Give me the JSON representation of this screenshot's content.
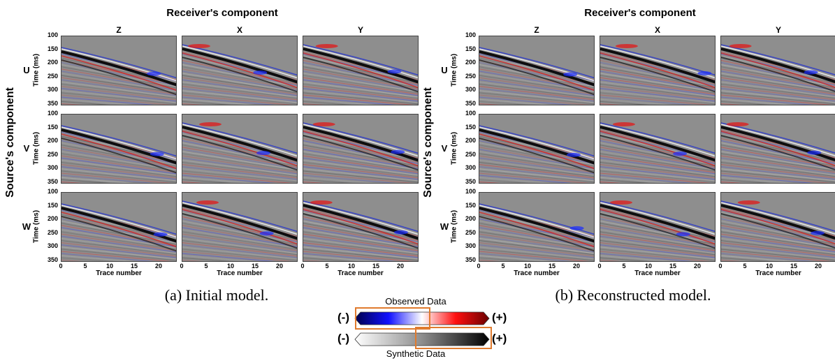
{
  "figures": [
    {
      "receiver_title": "Receiver's component",
      "source_title": "Source's component",
      "columns": [
        "Z",
        "X",
        "Y"
      ],
      "rows": [
        "U",
        "V",
        "W"
      ],
      "ylabel": "Time (ms)",
      "xlabel": "Trace number",
      "yticks": [
        "100",
        "150",
        "200",
        "250",
        "300",
        "350"
      ],
      "xticks": [
        "0",
        "5",
        "10",
        "15",
        "20"
      ],
      "caption": "(a) Initial model."
    },
    {
      "receiver_title": "Receiver's component",
      "source_title": "Source's component",
      "columns": [
        "Z",
        "X",
        "Y"
      ],
      "rows": [
        "U",
        "V",
        "W"
      ],
      "ylabel": "Time (ms)",
      "xlabel": "Trace number",
      "yticks": [
        "100",
        "150",
        "200",
        "250",
        "300",
        "350"
      ],
      "xticks": [
        "0",
        "5",
        "10",
        "15",
        "20"
      ],
      "caption": "(b) Reconstructed model."
    }
  ],
  "legend": {
    "observed": "Observed Data",
    "synthetic": "Synthetic Data",
    "minus": "(-)",
    "plus": "(+)",
    "highlight_color": "#e07b2e"
  },
  "chart_data": {
    "type": "heatmap",
    "ylim": [
      100,
      350
    ],
    "xlim": [
      0,
      23
    ],
    "ylabel": "Time (ms)",
    "xlabel": "Trace number"
  }
}
